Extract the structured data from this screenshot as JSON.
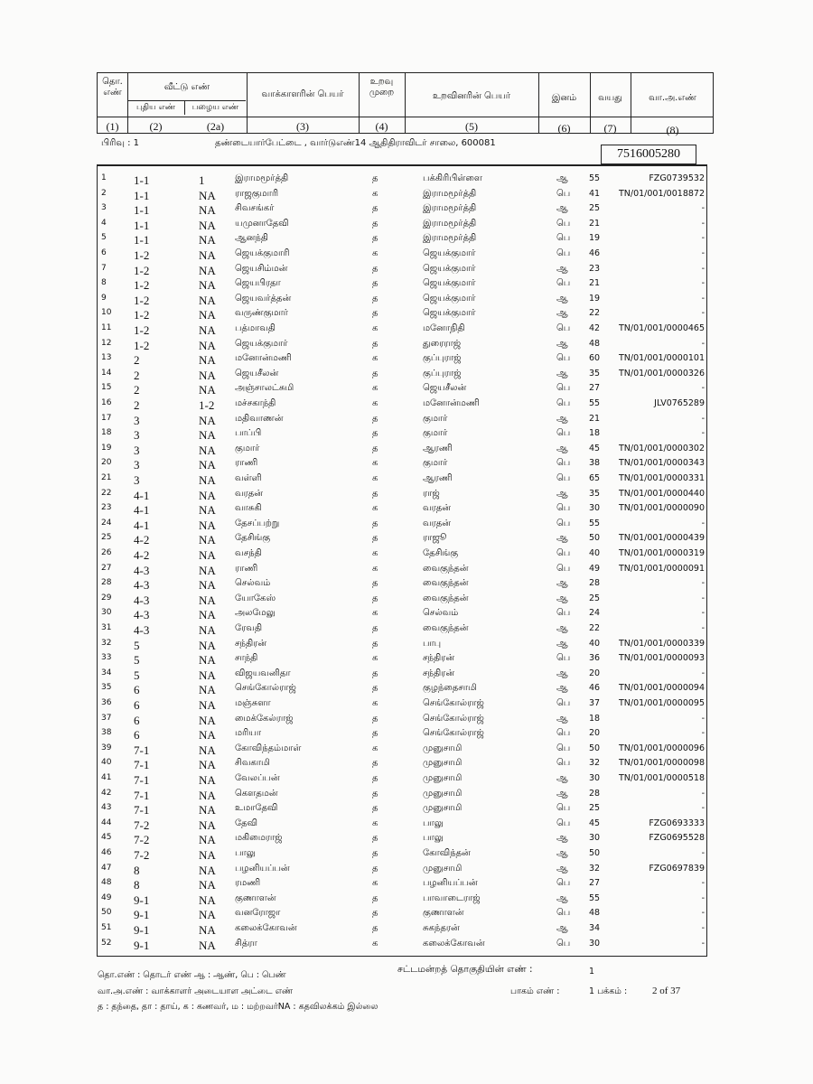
{
  "header": {
    "serial": "தொ. எண்",
    "house": "வீட்டு எண்",
    "house_new": "புதிய எண்",
    "house_old": "பழைய எண்",
    "voter_name": "வாக்காளரின் பெயர்",
    "relation": "உறவு முறை",
    "relative_name": "உறவினரின் பெயர்",
    "sex": "இனம்",
    "age": "வயது",
    "epic": "வா.அ.எண்",
    "col_numbers": [
      "(1)",
      "(2)",
      "(2a)",
      "(3)",
      "(4)",
      "(5)",
      "(6)",
      "(7)",
      "(8)"
    ]
  },
  "section": {
    "label": "பிரிவு :  1",
    "address": "தண்டையார்பேட்டை , வார்டுஎண்14  ஆதிதிராவிடர்  சாலை, 600081",
    "box_number": "7516005280"
  },
  "rows": [
    [
      "1",
      "1-1",
      "1",
      "இராமமூர்த்தி",
      "த",
      "பக்கிரிபிள்ளை",
      "ஆ",
      "55",
      "FZG0739532"
    ],
    [
      "2",
      "1-1",
      "NA",
      "ராஜகுமாரி",
      "க",
      "இராமமூர்த்தி",
      "பெ",
      "41",
      "TN/01/001/0018872"
    ],
    [
      "3",
      "1-1",
      "NA",
      "சிவசங்கர்",
      "த",
      "இராமமூர்த்தி",
      "ஆ",
      "25",
      "-"
    ],
    [
      "4",
      "1-1",
      "NA",
      "யமுனாதேவி",
      "த",
      "இராமமூர்த்தி",
      "பெ",
      "21",
      "-"
    ],
    [
      "5",
      "1-1",
      "NA",
      "ஆனந்தி",
      "த",
      "இராமமூர்த்தி",
      "பெ",
      "19",
      "-"
    ],
    [
      "6",
      "1-2",
      "NA",
      "ஜெயக்குமாரி",
      "க",
      "ஜெயக்குமார்",
      "பெ",
      "46",
      "-"
    ],
    [
      "7",
      "1-2",
      "NA",
      "ஜெயசிம்மன்",
      "த",
      "ஜெயக்குமார்",
      "ஆ",
      "23",
      "-"
    ],
    [
      "8",
      "1-2",
      "NA",
      "ஜெயபிரதா",
      "த",
      "ஜெயக்குமார்",
      "பெ",
      "21",
      "-"
    ],
    [
      "9",
      "1-2",
      "NA",
      "ஜெயவர்த்தன்",
      "த",
      "ஜெயக்குமார்",
      "ஆ",
      "19",
      "-"
    ],
    [
      "10",
      "1-2",
      "NA",
      "வருண்குமார்",
      "த",
      "ஜெயக்குமார்",
      "ஆ",
      "22",
      "-"
    ],
    [
      "11",
      "1-2",
      "NA",
      "பத்மாவதி",
      "க",
      "மனோநிதி",
      "பெ",
      "42",
      "TN/01/001/0000465"
    ],
    [
      "12",
      "1-2",
      "NA",
      "ஜெயக்குமார்",
      "த",
      "துரைராஜ்",
      "ஆ",
      "48",
      "-"
    ],
    [
      "13",
      "2",
      "NA",
      "மனோன்மணி",
      "க",
      "குப்புராஜ்",
      "பெ",
      "60",
      "TN/01/001/0000101"
    ],
    [
      "14",
      "2",
      "NA",
      "ஜெயசீலன்",
      "த",
      "குப்புராஜ்",
      "ஆ",
      "35",
      "TN/01/001/0000326"
    ],
    [
      "15",
      "2",
      "NA",
      "அஞ்சாலட்சுமி",
      "க",
      "ஜெயசீலன்",
      "பெ",
      "27",
      "-"
    ],
    [
      "16",
      "2",
      "1-2",
      "மச்சகாந்தி",
      "க",
      "மனோன்மணி",
      "பெ",
      "55",
      "JLV0765289"
    ],
    [
      "17",
      "3",
      "NA",
      "மதிவாணன்",
      "த",
      "குமார்",
      "ஆ",
      "21",
      "-"
    ],
    [
      "18",
      "3",
      "NA",
      "பாப்பி",
      "த",
      "குமார்",
      "பெ",
      "18",
      "-"
    ],
    [
      "19",
      "3",
      "NA",
      "குமார்",
      "த",
      "ஆரணி",
      "ஆ",
      "45",
      "TN/01/001/0000302"
    ],
    [
      "20",
      "3",
      "NA",
      "ராணி",
      "க",
      "குமார்",
      "பெ",
      "38",
      "TN/01/001/0000343"
    ],
    [
      "21",
      "3",
      "NA",
      "வள்ளி",
      "க",
      "ஆரணி",
      "பெ",
      "65",
      "TN/01/001/0000331"
    ],
    [
      "22",
      "4-1",
      "NA",
      "வரதன்",
      "த",
      "ராஜ்",
      "ஆ",
      "35",
      "TN/01/001/0000440"
    ],
    [
      "23",
      "4-1",
      "NA",
      "வாசுகி",
      "க",
      "வரதன்",
      "பெ",
      "30",
      "TN/01/001/0000090"
    ],
    [
      "24",
      "4-1",
      "NA",
      "தேசப்பற்று",
      "த",
      "வரதன்",
      "பெ",
      "55",
      "-"
    ],
    [
      "25",
      "4-2",
      "NA",
      "தேசிங்கு",
      "த",
      "ராஜூ",
      "ஆ",
      "50",
      "TN/01/001/0000439"
    ],
    [
      "26",
      "4-2",
      "NA",
      "வசந்தி",
      "க",
      "தேசிங்கு",
      "பெ",
      "40",
      "TN/01/001/0000319"
    ],
    [
      "27",
      "4-3",
      "NA",
      "ராணி",
      "க",
      "வைகுந்தன்",
      "பெ",
      "49",
      "TN/01/001/0000091"
    ],
    [
      "28",
      "4-3",
      "NA",
      "செல்வம்",
      "த",
      "வைகுந்தன்",
      "ஆ",
      "28",
      "-"
    ],
    [
      "29",
      "4-3",
      "NA",
      "யோகேஸ்",
      "த",
      "வைகுந்தன்",
      "ஆ",
      "25",
      "-"
    ],
    [
      "30",
      "4-3",
      "NA",
      "அலமேலு",
      "க",
      "செல்வம்",
      "பெ",
      "24",
      "-"
    ],
    [
      "31",
      "4-3",
      "NA",
      "ரேவதி",
      "த",
      "வைகுந்தன்",
      "ஆ",
      "22",
      "-"
    ],
    [
      "32",
      "5",
      "NA",
      "சந்திரன்",
      "த",
      "பாபு",
      "ஆ",
      "40",
      "TN/01/001/0000339"
    ],
    [
      "33",
      "5",
      "NA",
      "சாந்தி",
      "க",
      "சந்திரன்",
      "பெ",
      "36",
      "TN/01/001/0000093"
    ],
    [
      "34",
      "5",
      "NA",
      "விஜயவனிதா",
      "த",
      "சந்திரன்",
      "ஆ",
      "20",
      "-"
    ],
    [
      "35",
      "6",
      "NA",
      "செங்கோல்ராஜ்",
      "த",
      "குழந்தைசாமி",
      "ஆ",
      "46",
      "TN/01/001/0000094"
    ],
    [
      "36",
      "6",
      "NA",
      "மஞ்சுளா",
      "க",
      "செங்கோல்ராஜ்",
      "பெ",
      "37",
      "TN/01/001/0000095"
    ],
    [
      "37",
      "6",
      "NA",
      "மைக்கேல்ராஜ்",
      "த",
      "செங்கோல்ராஜ்",
      "ஆ",
      "18",
      "-"
    ],
    [
      "38",
      "6",
      "NA",
      "மரியா",
      "த",
      "செங்கோல்ராஜ்",
      "பெ",
      "20",
      "-"
    ],
    [
      "39",
      "7-1",
      "NA",
      "கோவிந்தம்மாள்",
      "க",
      "முனுசாமி",
      "பெ",
      "50",
      "TN/01/001/0000096"
    ],
    [
      "40",
      "7-1",
      "NA",
      "சிவகாமி",
      "த",
      "முனுசாமி",
      "பெ",
      "32",
      "TN/01/001/0000098"
    ],
    [
      "41",
      "7-1",
      "NA",
      "வேலப்பன்",
      "த",
      "முனுசாமி",
      "ஆ",
      "30",
      "TN/01/001/0000518"
    ],
    [
      "42",
      "7-1",
      "NA",
      "கௌதமன்",
      "த",
      "முனுசாமி",
      "ஆ",
      "28",
      "-"
    ],
    [
      "43",
      "7-1",
      "NA",
      "உமாதேவி",
      "த",
      "முனுசாமி",
      "பெ",
      "25",
      "-"
    ],
    [
      "44",
      "7-2",
      "NA",
      "தேவி",
      "க",
      "பாலு",
      "பெ",
      "45",
      "FZG0693333"
    ],
    [
      "45",
      "7-2",
      "NA",
      "மகிமைராஜ்",
      "த",
      "பாலு",
      "ஆ",
      "30",
      "FZG0695528"
    ],
    [
      "46",
      "7-2",
      "NA",
      "பாலு",
      "த",
      "கோவிந்தன்",
      "ஆ",
      "50",
      "-"
    ],
    [
      "47",
      "8",
      "NA",
      "பழனியப்பன்",
      "த",
      "முனுசாமி",
      "ஆ",
      "32",
      "FZG0697839"
    ],
    [
      "48",
      "8",
      "NA",
      "ரமணி",
      "க",
      "பழனியப்பன்",
      "பெ",
      "27",
      "-"
    ],
    [
      "49",
      "9-1",
      "NA",
      "குணாளன்",
      "த",
      "பாவாடைராஜ்",
      "ஆ",
      "55",
      "-"
    ],
    [
      "50",
      "9-1",
      "NA",
      "வனரோஜா",
      "த",
      "குணாளன்",
      "பெ",
      "48",
      "-"
    ],
    [
      "51",
      "9-1",
      "NA",
      "கலைக்கோவன்",
      "த",
      "சுகந்தரன்",
      "ஆ",
      "34",
      "-"
    ],
    [
      "52",
      "9-1",
      "NA",
      "சித்ரா",
      "க",
      "கலைக்கோவன்",
      "பெ",
      "30",
      "-"
    ]
  ],
  "footer": {
    "legend1": "தொ.எண் : தொடர் எண்    ஆ : ஆண், பெ : பெண்",
    "legend2": "வா.அ.எண் : வாக்காளர் அடையாள அட்டை எண்",
    "legend3": "த : தந்தை, தா : தாய், க : கணவர், ம : மற்றவர்NA : கதவிலக்கம் இல்லை",
    "constituency_label": "சட்டமன்றத் தொகுதியின் எண் :",
    "constituency_value": "1",
    "part_label": "பாகம் எண் :",
    "part_value": "1 பக்கம் :",
    "page": "2 of  37"
  }
}
